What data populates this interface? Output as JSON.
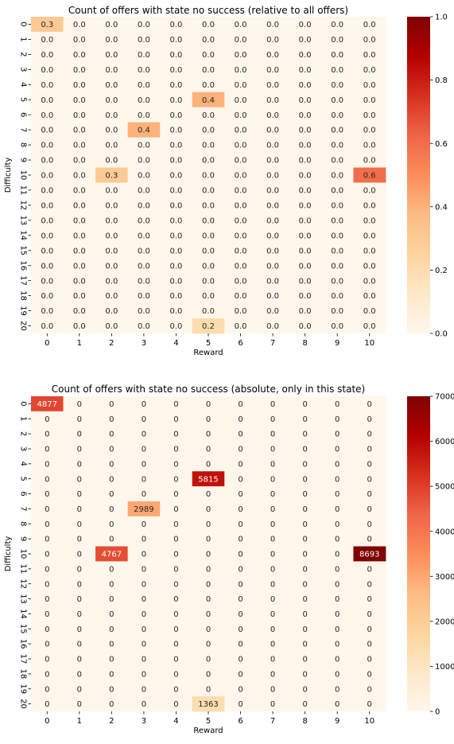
{
  "chart_data": [
    {
      "type": "heatmap",
      "title": "Count of offers with state no success (relative to all offers)",
      "xlabel": "Reward",
      "ylabel": "Difficulty",
      "x_categories": [
        "0",
        "1",
        "2",
        "3",
        "4",
        "5",
        "6",
        "7",
        "8",
        "9",
        "10"
      ],
      "y_categories": [
        "0",
        "1",
        "2",
        "3",
        "4",
        "5",
        "6",
        "7",
        "8",
        "9",
        "10",
        "11",
        "12",
        "13",
        "14",
        "15",
        "16",
        "17",
        "18",
        "19",
        "20"
      ],
      "value_format": "0.1f",
      "vmin": 0.0,
      "vmax": 1.0,
      "colormap": "OrRd",
      "colorbar_ticks": [
        "0.0",
        "0.2",
        "0.4",
        "0.6",
        "0.8",
        "1.0"
      ],
      "colorbar_tick_values": [
        0.0,
        0.2,
        0.4,
        0.6,
        0.8,
        1.0
      ],
      "nonzero_cells": [
        {
          "difficulty": 0,
          "reward": 0,
          "value": 0.3
        },
        {
          "difficulty": 5,
          "reward": 5,
          "value": 0.4
        },
        {
          "difficulty": 7,
          "reward": 3,
          "value": 0.4
        },
        {
          "difficulty": 10,
          "reward": 2,
          "value": 0.3
        },
        {
          "difficulty": 10,
          "reward": 10,
          "value": 0.6
        },
        {
          "difficulty": 20,
          "reward": 5,
          "value": 0.2
        }
      ],
      "default_value": 0.0
    },
    {
      "type": "heatmap",
      "title": "Count of offers with state no success (absolute, only in this state)",
      "xlabel": "Reward",
      "ylabel": "Difficulty",
      "x_categories": [
        "0",
        "1",
        "2",
        "3",
        "4",
        "5",
        "6",
        "7",
        "8",
        "9",
        "10"
      ],
      "y_categories": [
        "0",
        "1",
        "2",
        "3",
        "4",
        "5",
        "6",
        "7",
        "8",
        "9",
        "10",
        "11",
        "12",
        "13",
        "14",
        "15",
        "16",
        "17",
        "18",
        "19",
        "20"
      ],
      "value_format": "int",
      "vmin": 0,
      "vmax": 7000,
      "colormap": "OrRd",
      "colorbar_ticks": [
        "0",
        "1000",
        "2000",
        "3000",
        "4000",
        "5000",
        "6000",
        "7000"
      ],
      "colorbar_tick_values": [
        0,
        1000,
        2000,
        3000,
        4000,
        5000,
        6000,
        7000
      ],
      "nonzero_cells": [
        {
          "difficulty": 0,
          "reward": 0,
          "value": 4877
        },
        {
          "difficulty": 5,
          "reward": 5,
          "value": 5815
        },
        {
          "difficulty": 7,
          "reward": 3,
          "value": 2989
        },
        {
          "difficulty": 10,
          "reward": 2,
          "value": 4767
        },
        {
          "difficulty": 10,
          "reward": 10,
          "value": 8693
        },
        {
          "difficulty": 20,
          "reward": 5,
          "value": 1363
        }
      ],
      "default_value": 0
    }
  ]
}
